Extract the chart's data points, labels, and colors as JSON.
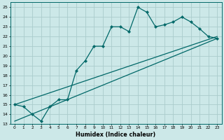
{
  "xlabel": "Humidex (Indice chaleur)",
  "background_color": "#cce8e8",
  "grid_color": "#aacccc",
  "line_color": "#006868",
  "xlim": [
    -0.5,
    23.5
  ],
  "ylim": [
    13,
    25.5
  ],
  "yticks": [
    13,
    14,
    15,
    16,
    17,
    18,
    19,
    20,
    21,
    22,
    23,
    24,
    25
  ],
  "xticks": [
    0,
    1,
    2,
    3,
    4,
    5,
    6,
    7,
    8,
    9,
    10,
    11,
    12,
    13,
    14,
    15,
    16,
    17,
    18,
    19,
    20,
    21,
    22,
    23
  ],
  "line1_x": [
    0,
    1,
    2,
    3,
    4,
    5,
    6,
    7,
    8,
    9,
    10,
    11,
    12,
    13,
    14,
    15,
    16,
    17,
    18,
    19,
    20,
    21,
    22,
    23
  ],
  "line1_y": [
    15.0,
    14.8,
    14.0,
    13.3,
    14.8,
    15.5,
    15.5,
    18.5,
    19.5,
    21.0,
    21.0,
    23.0,
    23.0,
    22.5,
    25.0,
    24.5,
    23.0,
    23.2,
    23.5,
    24.0,
    23.5,
    22.8,
    22.0,
    21.8
  ],
  "line2_x": [
    0,
    23
  ],
  "line2_y": [
    15.0,
    22.0
  ],
  "line3_x": [
    0,
    23
  ],
  "line3_y": [
    15.0,
    21.8
  ],
  "line4_x": [
    0,
    23
  ],
  "line4_y": [
    13.3,
    21.8
  ]
}
